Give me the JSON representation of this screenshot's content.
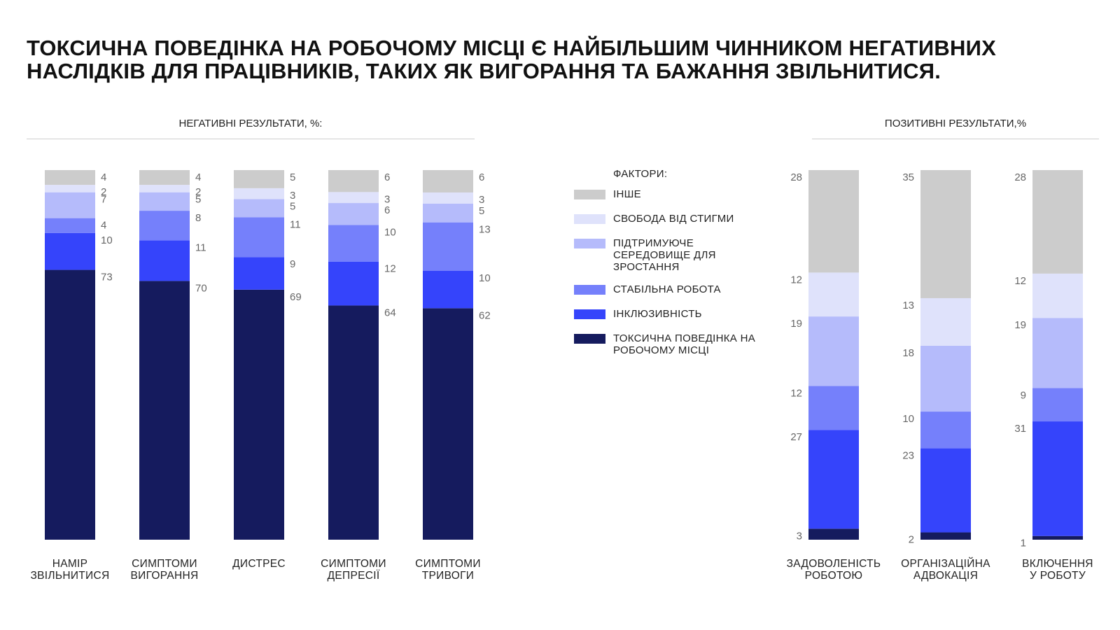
{
  "title": "ТОКСИЧНА ПОВЕДІНКА НА РОБОЧОМУ МІСЦІ Є НАЙБІЛЬШИМ ЧИННИКОМ НЕГАТИВНИХ НАСЛІДКІВ ДЛЯ ПРАЦІВНИКІВ, ТАКИХ ЯК ВИГОРАННЯ ТА БАЖАННЯ ЗВІЛЬНИТИСЯ.",
  "legend": {
    "title": "ФАКТОРИ:",
    "items": [
      {
        "label": "ІНШЕ",
        "color": "#cccccc"
      },
      {
        "label": "СВОБОДА ВІД СТИГМИ",
        "color": "#dfe2fb"
      },
      {
        "label": "ПІДТРИМУЮЧЕ СЕРЕДОВИЩЕ ДЛЯ ЗРОСТАННЯ",
        "color": "#b5bbfb"
      },
      {
        "label": "СТАБІЛЬНА РОБОТА",
        "color": "#7580fb"
      },
      {
        "label": "ІНКЛЮЗИВНІСТЬ",
        "color": "#3544fb"
      },
      {
        "label": "ТОКСИЧНА ПОВЕДІНКА НА РОБОЧОМУ МІСЦІ",
        "color": "#151b5e"
      }
    ]
  },
  "chart_data": [
    {
      "type": "bar",
      "stacked": true,
      "title": "НЕГАТИВНІ РЕЗУЛЬТАТИ, %:",
      "value_label_side": "right",
      "categories": [
        [
          "НАМІР",
          "ЗВІЛЬНИТИСЯ"
        ],
        [
          "СИМПТОМИ",
          "ВИГОРАННЯ"
        ],
        [
          "ДИСТРЕС"
        ],
        [
          "СИМПТОМИ",
          "ДЕПРЕСІЇ"
        ],
        [
          "СИМПТОМИ",
          "ТРИВОГИ"
        ]
      ],
      "series": [
        {
          "name": "ТОКСИЧНА ПОВЕДІНКА НА РОБОЧОМУ МІСЦІ",
          "values": [
            73,
            70,
            69,
            64,
            62
          ]
        },
        {
          "name": "ІНКЛЮЗИВНІСТЬ",
          "values": [
            10,
            11,
            9,
            12,
            10
          ]
        },
        {
          "name": "СТАБІЛЬНА РОБОТА",
          "values": [
            4,
            8,
            11,
            10,
            13
          ]
        },
        {
          "name": "ПІДТРИМУЮЧЕ СЕРЕДОВИЩЕ ДЛЯ ЗРОСТАННЯ",
          "values": [
            7,
            5,
            5,
            6,
            5
          ]
        },
        {
          "name": "СВОБОДА ВІД СТИГМИ",
          "values": [
            2,
            2,
            3,
            3,
            3
          ]
        },
        {
          "name": "ІНШЕ",
          "values": [
            4,
            4,
            5,
            6,
            6
          ]
        }
      ]
    },
    {
      "type": "bar",
      "stacked": true,
      "title": "ПОЗИТИВНІ РЕЗУЛЬТАТИ,%",
      "value_label_side": "left",
      "categories": [
        [
          "ЗАДОВОЛЕНІСТЬ",
          "РОБОТОЮ"
        ],
        [
          "ОРГАНІЗАЦІЙНА",
          "АДВОКАЦІЯ"
        ],
        [
          "ВКЛЮЧЕННЯ",
          "У РОБОТУ"
        ]
      ],
      "series": [
        {
          "name": "ТОКСИЧНА ПОВЕДІНКА НА РОБОЧОМУ МІСЦІ",
          "values": [
            3,
            2,
            1
          ]
        },
        {
          "name": "ІНКЛЮЗИВНІСТЬ",
          "values": [
            27,
            23,
            31
          ]
        },
        {
          "name": "СТАБІЛЬНА РОБОТА",
          "values": [
            12,
            10,
            9
          ]
        },
        {
          "name": "ПІДТРИМУЮЧЕ СЕРЕДОВИЩЕ ДЛЯ ЗРОСТАННЯ",
          "values": [
            19,
            18,
            19
          ]
        },
        {
          "name": "СВОБОДА ВІД СТИГМИ",
          "values": [
            12,
            13,
            12
          ]
        },
        {
          "name": "ІНШЕ",
          "values": [
            28,
            35,
            28
          ]
        }
      ]
    }
  ]
}
